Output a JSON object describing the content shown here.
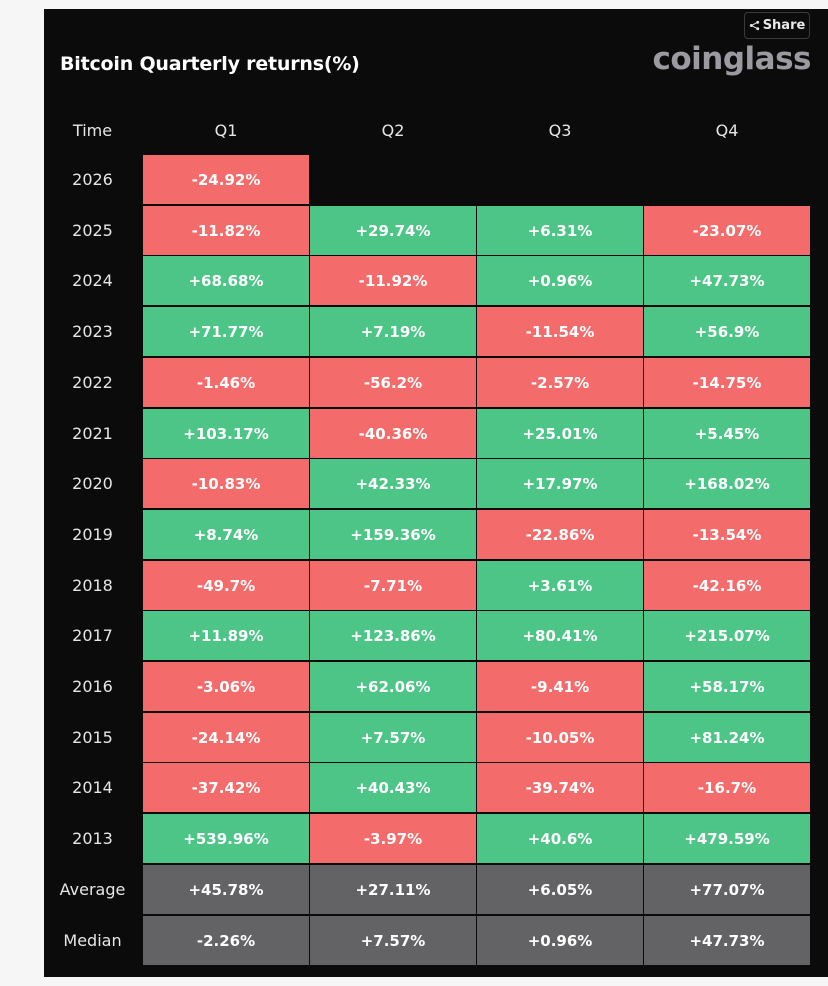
{
  "title": "Bitcoin Quarterly returns(%)",
  "brand": "coinglass",
  "share_label": "Share",
  "colors": {
    "positive": "#4cc587",
    "negative": "#f46b6b",
    "summary": "#636366",
    "background": "#0b0b0c"
  },
  "chart_data": {
    "type": "table",
    "title": "Bitcoin Quarterly returns(%)",
    "corner_label": "Time",
    "columns": [
      "Q1",
      "Q2",
      "Q3",
      "Q4"
    ],
    "rows": [
      {
        "label": "2026",
        "values": [
          "-24.92%",
          null,
          null,
          null
        ]
      },
      {
        "label": "2025",
        "values": [
          "-11.82%",
          "+29.74%",
          "+6.31%",
          "-23.07%"
        ]
      },
      {
        "label": "2024",
        "values": [
          "+68.68%",
          "-11.92%",
          "+0.96%",
          "+47.73%"
        ]
      },
      {
        "label": "2023",
        "values": [
          "+71.77%",
          "+7.19%",
          "-11.54%",
          "+56.9%"
        ]
      },
      {
        "label": "2022",
        "values": [
          "-1.46%",
          "-56.2%",
          "-2.57%",
          "-14.75%"
        ]
      },
      {
        "label": "2021",
        "values": [
          "+103.17%",
          "-40.36%",
          "+25.01%",
          "+5.45%"
        ]
      },
      {
        "label": "2020",
        "values": [
          "-10.83%",
          "+42.33%",
          "+17.97%",
          "+168.02%"
        ]
      },
      {
        "label": "2019",
        "values": [
          "+8.74%",
          "+159.36%",
          "-22.86%",
          "-13.54%"
        ]
      },
      {
        "label": "2018",
        "values": [
          "-49.7%",
          "-7.71%",
          "+3.61%",
          "-42.16%"
        ]
      },
      {
        "label": "2017",
        "values": [
          "+11.89%",
          "+123.86%",
          "+80.41%",
          "+215.07%"
        ]
      },
      {
        "label": "2016",
        "values": [
          "-3.06%",
          "+62.06%",
          "-9.41%",
          "+58.17%"
        ]
      },
      {
        "label": "2015",
        "values": [
          "-24.14%",
          "+7.57%",
          "-10.05%",
          "+81.24%"
        ]
      },
      {
        "label": "2014",
        "values": [
          "-37.42%",
          "+40.43%",
          "-39.74%",
          "-16.7%"
        ]
      },
      {
        "label": "2013",
        "values": [
          "+539.96%",
          "-3.97%",
          "+40.6%",
          "+479.59%"
        ]
      }
    ],
    "summary": [
      {
        "label": "Average",
        "values": [
          "+45.78%",
          "+27.11%",
          "+6.05%",
          "+77.07%"
        ]
      },
      {
        "label": "Median",
        "values": [
          "-2.26%",
          "+7.57%",
          "+0.96%",
          "+47.73%"
        ]
      }
    ]
  }
}
